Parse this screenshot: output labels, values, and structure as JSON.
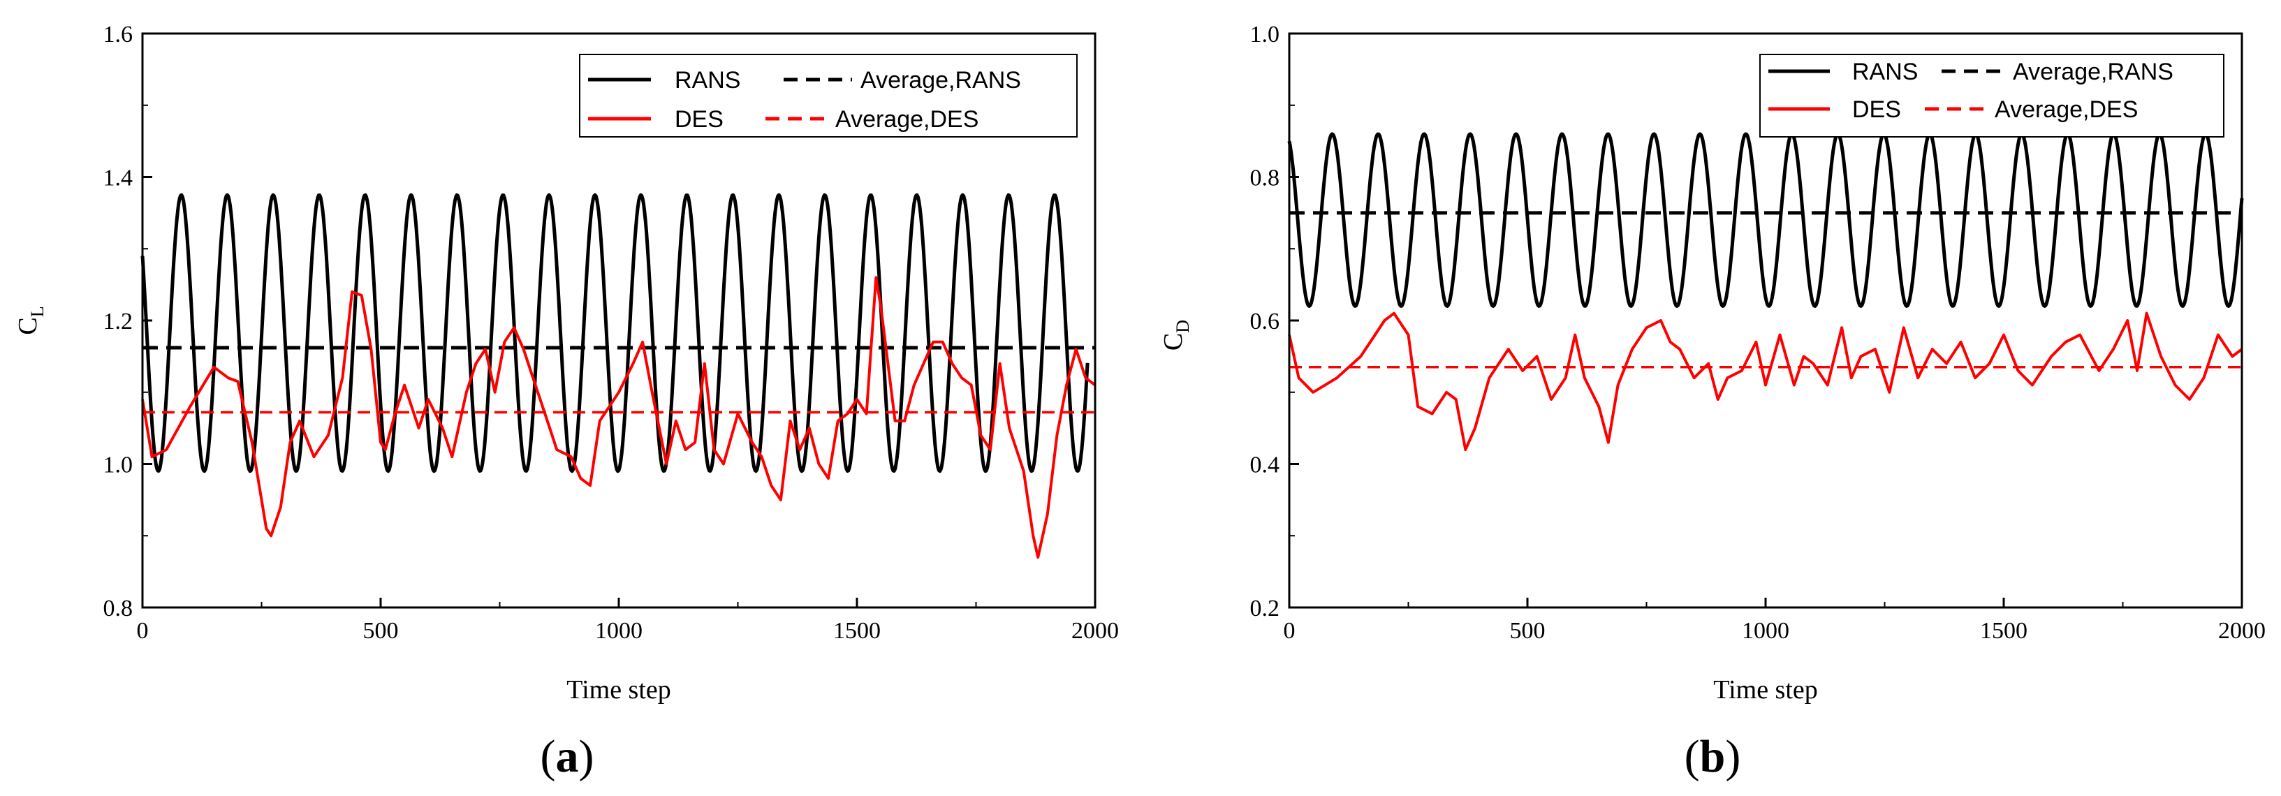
{
  "chart_data": [
    {
      "panel_label": "a",
      "type": "line",
      "title": "",
      "xlabel": "Time step",
      "ylabel": {
        "base": "C",
        "sub": "L"
      },
      "xlim": [
        0,
        2000
      ],
      "ylim": [
        0.8,
        1.6
      ],
      "xticks": [
        0,
        500,
        1000,
        1500,
        2000
      ],
      "yticks": [
        0.8,
        1.0,
        1.2,
        1.4,
        1.6
      ],
      "ytick_labels": [
        "0.8",
        "1.0",
        "1.2",
        "1.4",
        "1.6"
      ],
      "grid": false,
      "legend": {
        "position": "top-right",
        "entries": [
          "RANS",
          "Average,RANS",
          "DES",
          "Average,DES"
        ]
      },
      "series": [
        {
          "name": "RANS",
          "style": "solid",
          "color": "#000000",
          "kind": "periodic",
          "period": 96.5,
          "x_max": 1985,
          "y_max": 1.375,
          "y_min": 0.99,
          "start_y": 1.29
        },
        {
          "name": "Average,RANS",
          "style": "dashed",
          "color": "#000000",
          "kind": "constant",
          "value": 1.162
        },
        {
          "name": "DES",
          "style": "solid",
          "color": "#ff0000",
          "kind": "points",
          "x": [
            0,
            20,
            50,
            100,
            150,
            180,
            200,
            230,
            250,
            260,
            270,
            290,
            310,
            330,
            360,
            390,
            420,
            440,
            460,
            480,
            500,
            510,
            530,
            550,
            580,
            600,
            630,
            650,
            680,
            700,
            720,
            740,
            760,
            780,
            800,
            820,
            850,
            870,
            900,
            920,
            940,
            960,
            980,
            1000,
            1030,
            1050,
            1070,
            1100,
            1120,
            1140,
            1160,
            1180,
            1200,
            1220,
            1250,
            1280,
            1300,
            1320,
            1340,
            1360,
            1380,
            1400,
            1420,
            1440,
            1460,
            1480,
            1500,
            1520,
            1540,
            1550,
            1580,
            1600,
            1620,
            1660,
            1680,
            1700,
            1720,
            1740,
            1760,
            1780,
            1800,
            1820,
            1850,
            1870,
            1880,
            1900,
            1920,
            1940,
            1960,
            1980,
            2000
          ],
          "y": [
            1.09,
            1.01,
            1.02,
            1.08,
            1.135,
            1.12,
            1.115,
            1.03,
            0.95,
            0.91,
            0.9,
            0.94,
            1.03,
            1.06,
            1.01,
            1.04,
            1.12,
            1.24,
            1.235,
            1.16,
            1.03,
            1.02,
            1.07,
            1.11,
            1.05,
            1.09,
            1.05,
            1.01,
            1.1,
            1.14,
            1.16,
            1.1,
            1.17,
            1.19,
            1.16,
            1.12,
            1.06,
            1.02,
            1.01,
            0.98,
            0.97,
            1.06,
            1.08,
            1.1,
            1.14,
            1.17,
            1.1,
            1.0,
            1.06,
            1.02,
            1.03,
            1.14,
            1.02,
            1.0,
            1.07,
            1.03,
            1.01,
            0.97,
            0.95,
            1.06,
            1.02,
            1.05,
            1.0,
            0.98,
            1.06,
            1.07,
            1.09,
            1.07,
            1.26,
            1.22,
            1.06,
            1.06,
            1.11,
            1.17,
            1.17,
            1.14,
            1.12,
            1.11,
            1.04,
            1.02,
            1.14,
            1.05,
            0.99,
            0.9,
            0.87,
            0.93,
            1.04,
            1.11,
            1.16,
            1.12,
            1.11
          ]
        },
        {
          "name": "Average,DES",
          "style": "dashed",
          "color": "#ff0000",
          "kind": "constant",
          "value": 1.072
        }
      ]
    },
    {
      "panel_label": "b",
      "type": "line",
      "title": "",
      "xlabel": "Time step",
      "ylabel": {
        "base": "C",
        "sub": "D"
      },
      "xlim": [
        0,
        2000
      ],
      "ylim": [
        0.2,
        1.0
      ],
      "xticks": [
        0,
        500,
        1000,
        1500,
        2000
      ],
      "yticks": [
        0.2,
        0.4,
        0.6,
        0.8,
        1.0
      ],
      "ytick_labels": [
        "0.2",
        "0.4",
        "0.6",
        "0.8",
        "1.0"
      ],
      "grid": false,
      "legend": {
        "position": "top-right",
        "entries": [
          "RANS",
          "Average,RANS",
          "DES",
          "Average,DES"
        ]
      },
      "series": [
        {
          "name": "RANS",
          "style": "solid",
          "color": "#000000",
          "kind": "periodic",
          "period": 96.5,
          "x_max": 2000,
          "y_max": 0.86,
          "y_min": 0.62,
          "start_y": 0.85
        },
        {
          "name": "Average,RANS",
          "style": "dashed",
          "color": "#000000",
          "kind": "constant",
          "value": 0.75
        },
        {
          "name": "DES",
          "style": "solid",
          "color": "#ff0000",
          "kind": "points",
          "x": [
            0,
            20,
            50,
            100,
            150,
            180,
            200,
            220,
            250,
            270,
            300,
            330,
            350,
            370,
            390,
            420,
            460,
            490,
            520,
            550,
            580,
            600,
            620,
            650,
            670,
            690,
            720,
            750,
            780,
            800,
            820,
            850,
            880,
            900,
            920,
            950,
            980,
            1000,
            1030,
            1060,
            1080,
            1100,
            1130,
            1160,
            1180,
            1200,
            1230,
            1260,
            1290,
            1320,
            1350,
            1380,
            1410,
            1440,
            1470,
            1500,
            1530,
            1560,
            1600,
            1630,
            1660,
            1700,
            1730,
            1760,
            1780,
            1800,
            1830,
            1860,
            1890,
            1920,
            1950,
            1980,
            2000
          ],
          "y": [
            0.58,
            0.52,
            0.5,
            0.52,
            0.55,
            0.58,
            0.6,
            0.61,
            0.58,
            0.48,
            0.47,
            0.5,
            0.49,
            0.42,
            0.45,
            0.52,
            0.56,
            0.53,
            0.55,
            0.49,
            0.52,
            0.58,
            0.52,
            0.48,
            0.43,
            0.51,
            0.56,
            0.59,
            0.6,
            0.57,
            0.56,
            0.52,
            0.54,
            0.49,
            0.52,
            0.53,
            0.57,
            0.51,
            0.58,
            0.51,
            0.55,
            0.54,
            0.51,
            0.59,
            0.52,
            0.55,
            0.56,
            0.5,
            0.59,
            0.52,
            0.56,
            0.54,
            0.57,
            0.52,
            0.54,
            0.58,
            0.53,
            0.51,
            0.55,
            0.57,
            0.58,
            0.53,
            0.56,
            0.6,
            0.53,
            0.61,
            0.55,
            0.51,
            0.49,
            0.52,
            0.58,
            0.55,
            0.56
          ]
        },
        {
          "name": "Average,DES",
          "style": "dashed",
          "color": "#ff0000",
          "kind": "constant",
          "value": 0.535
        }
      ]
    }
  ]
}
